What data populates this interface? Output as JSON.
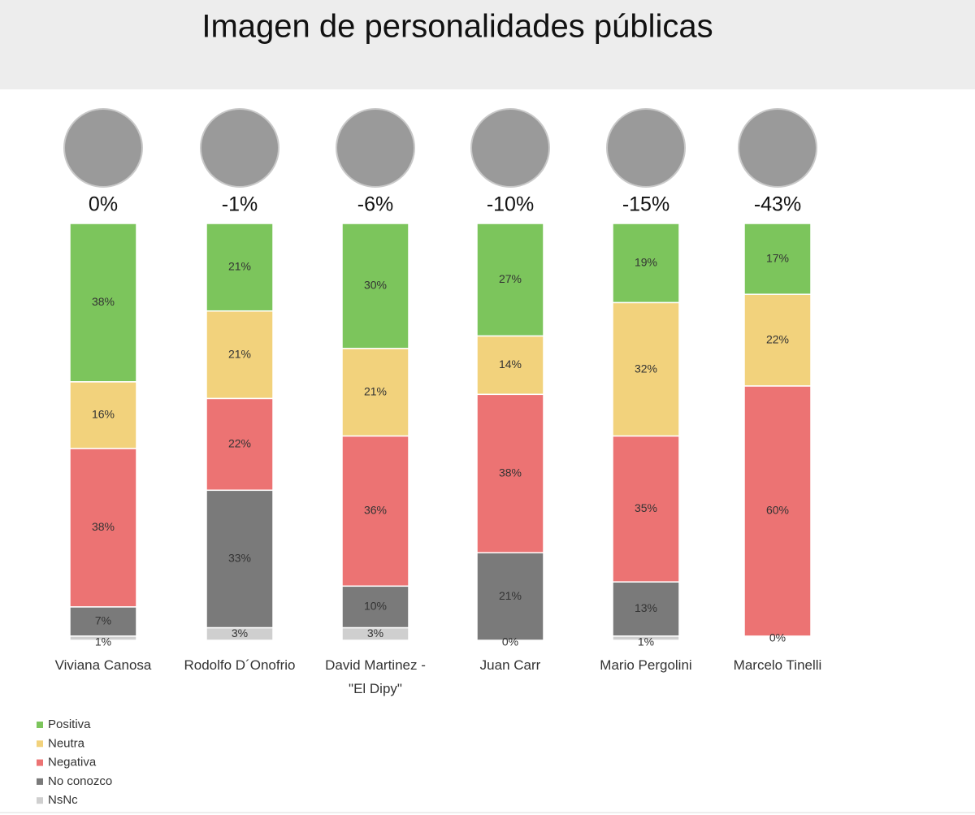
{
  "chart_data": {
    "type": "stacked_bar",
    "title": "Imagen de personalidades públicas",
    "categories": [
      "Viviana Canosa",
      "Rodolfo D´Onofrio",
      "David Martinez - \"El Dipy\"",
      "Juan Carr",
      "Mario Pergolini",
      "Marcelo Tinelli"
    ],
    "net_image": {
      "values": [
        0,
        -1,
        -6,
        -10,
        -15,
        -43
      ],
      "value_labels": [
        "0%",
        "-1%",
        "-6%",
        "-10%",
        "-15%",
        "-43%"
      ]
    },
    "series": [
      {
        "name": "Positiva",
        "color": "#7cc55c",
        "values": [
          38,
          21,
          30,
          27,
          19,
          17
        ],
        "value_labels": [
          "38%",
          "21%",
          "30%",
          "27%",
          "19%",
          "17%"
        ]
      },
      {
        "name": "Neutra",
        "color": "#f2d27c",
        "values": [
          16,
          21,
          21,
          14,
          32,
          22
        ],
        "value_labels": [
          "16%",
          "21%",
          "21%",
          "14%",
          "32%",
          "22%"
        ]
      },
      {
        "name": "Negativa",
        "color": "#ec7373",
        "values": [
          38,
          22,
          36,
          38,
          35,
          60
        ],
        "value_labels": [
          "38%",
          "22%",
          "36%",
          "38%",
          "35%",
          "60%"
        ]
      },
      {
        "name": "No conozco",
        "color": "#7a7a7a",
        "values": [
          7,
          33,
          10,
          21,
          13,
          null
        ],
        "value_labels": [
          "7%",
          "33%",
          "10%",
          "21%",
          "13%",
          null
        ]
      },
      {
        "name": "NsNc",
        "color": "#cfcfcf",
        "values": [
          1,
          3,
          3,
          0,
          1,
          0
        ],
        "value_labels": [
          "1%",
          "3%",
          "3%",
          "0%",
          "1%",
          "0%"
        ]
      }
    ],
    "ylim": [
      0,
      100
    ],
    "legend": "bottom-left"
  }
}
